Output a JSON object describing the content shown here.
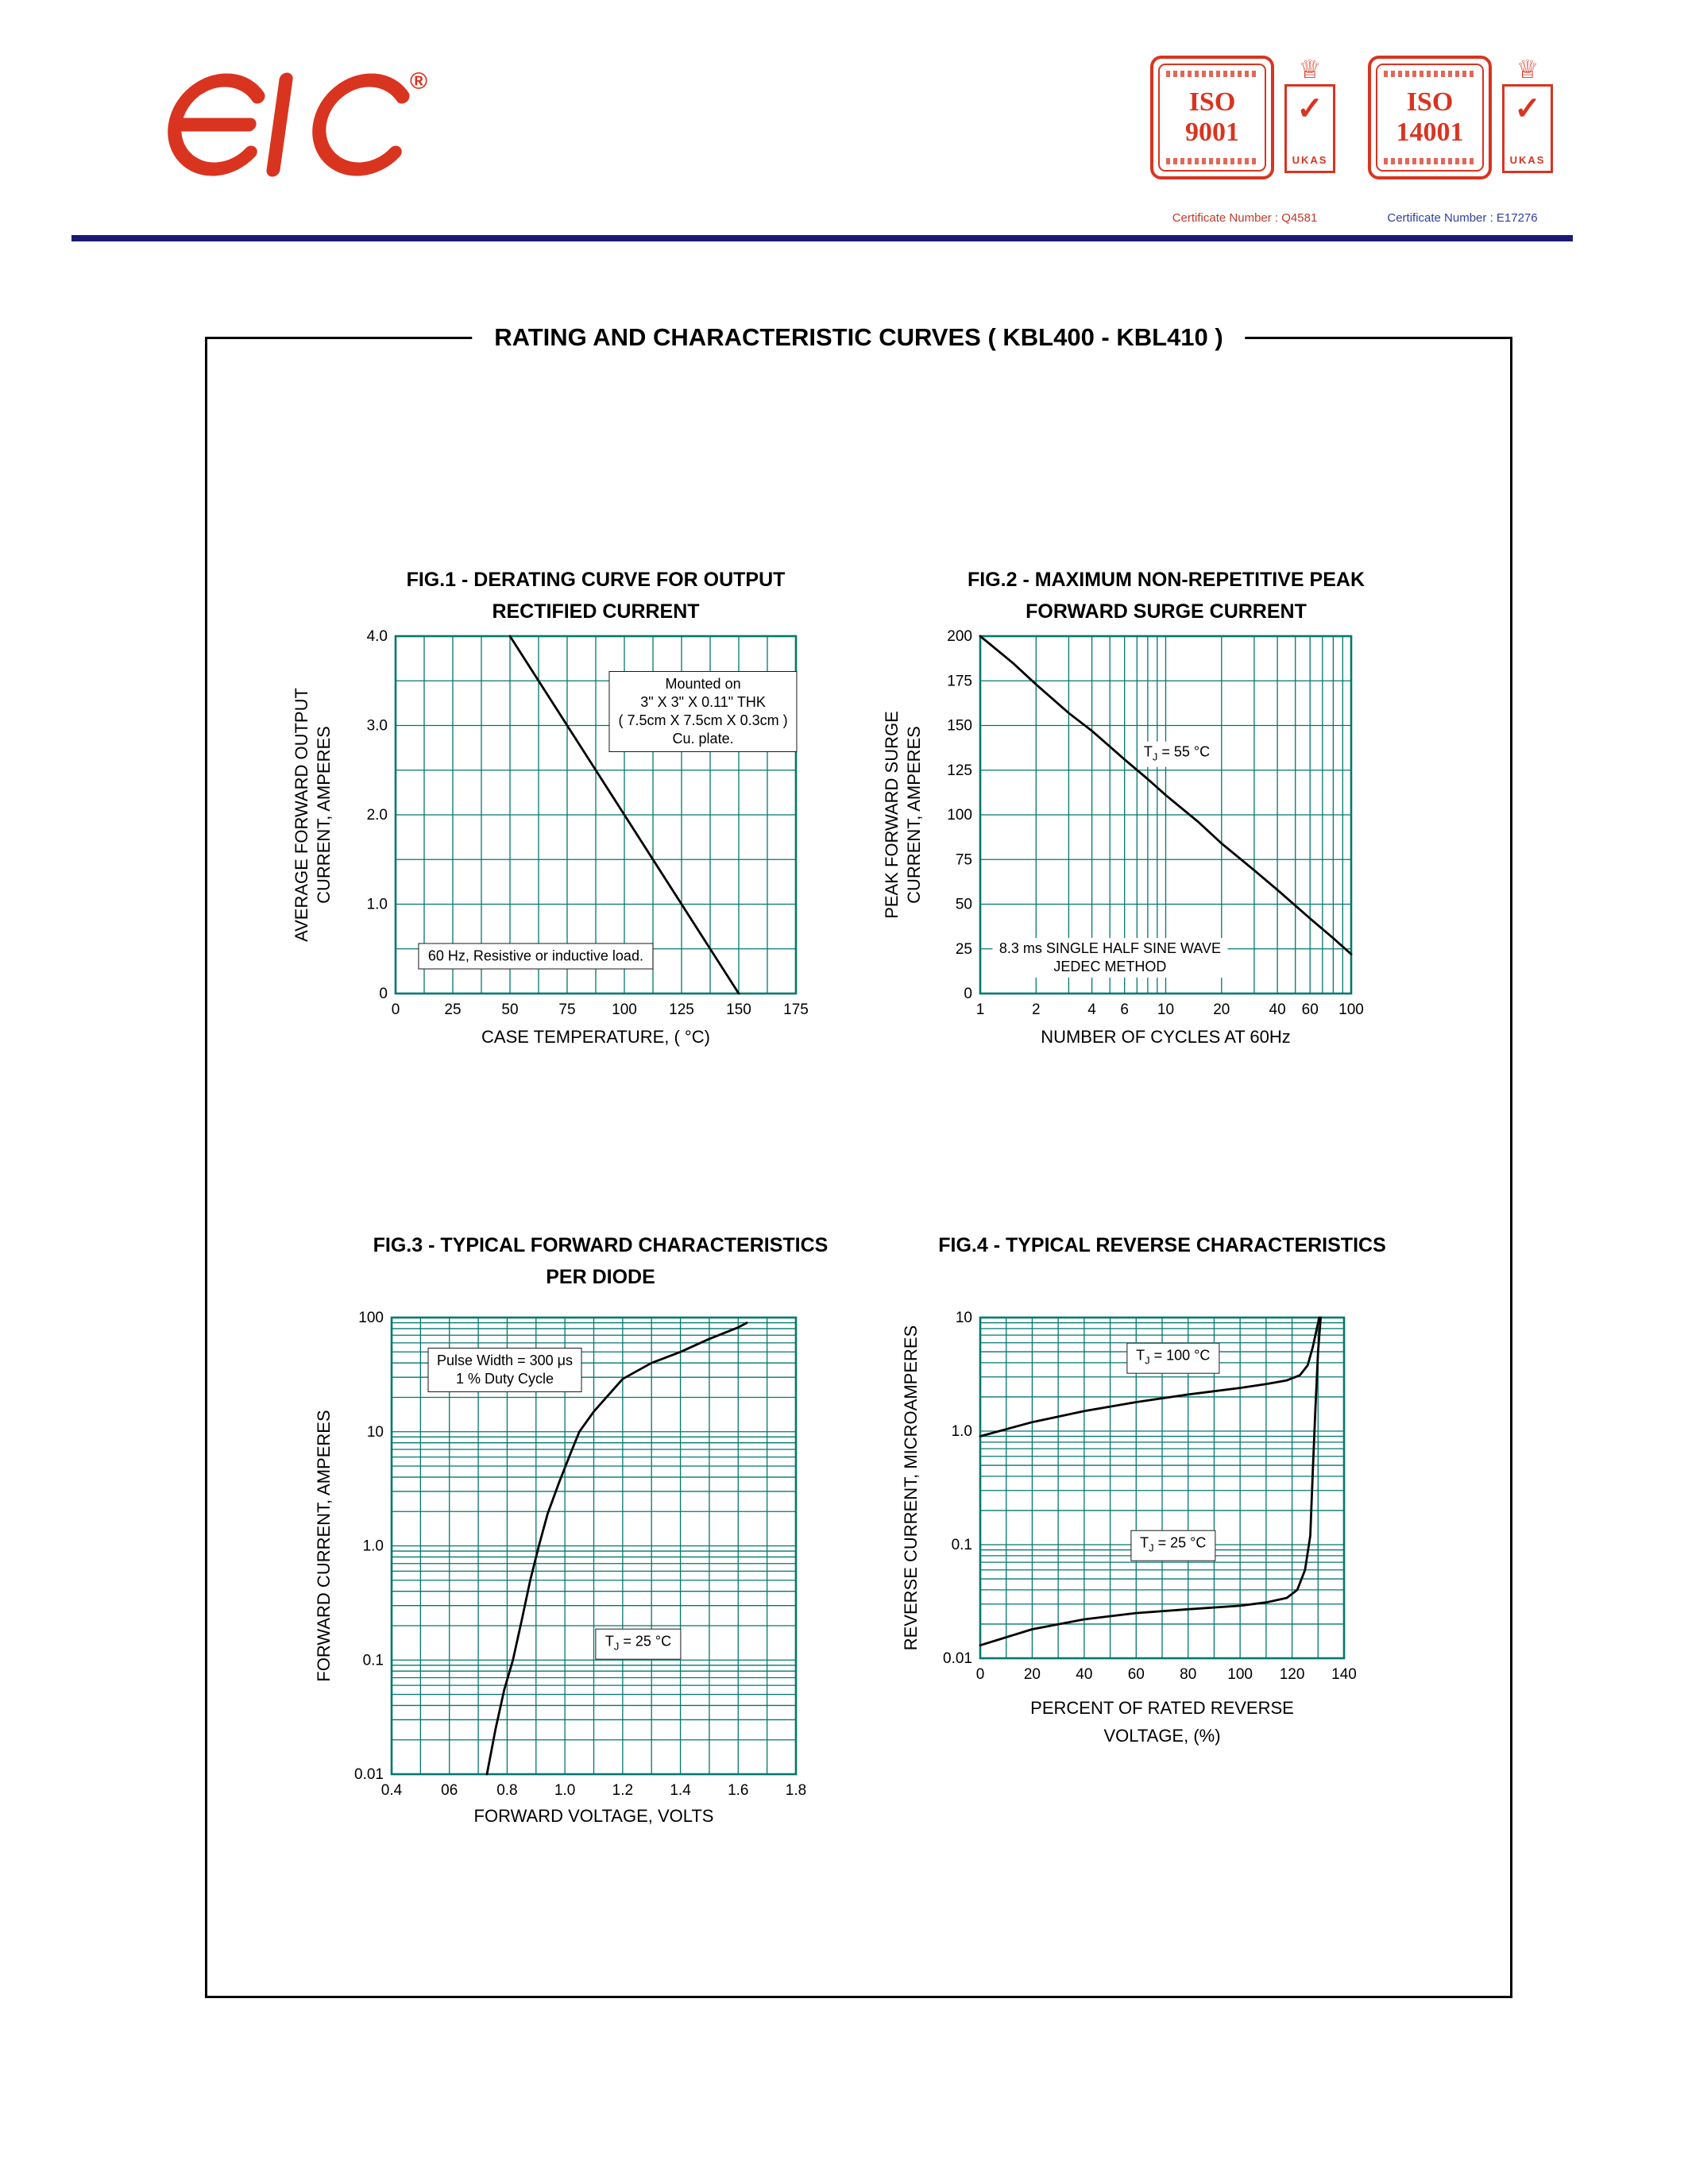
{
  "page": {
    "title": "RATING AND CHARACTERISTIC CURVES  ( KBL400 - KBL410 )"
  },
  "header": {
    "logo_text": "EIC",
    "logo_registered": "®",
    "rule_color": "#1a1a75",
    "accent_red": "#d93420",
    "badges": [
      {
        "stamp_line1": "ISO",
        "stamp_line2": "9001",
        "crown": "♕",
        "check": "✓",
        "ribbon": "UKAS",
        "certificate": "Certificate Number : Q4581",
        "cert_color": "#c03a2b"
      },
      {
        "stamp_line1": "ISO",
        "stamp_line2": "14001",
        "crown": "♕",
        "check": "✓",
        "ribbon": "UKAS",
        "certificate": "Certificate Number : E17276",
        "cert_color": "#2f3f9e"
      }
    ]
  },
  "chart_data": [
    {
      "id": "fig1",
      "type": "line",
      "title_lines": [
        "FIG.1 - DERATING CURVE FOR OUTPUT",
        "RECTIFIED CURRENT"
      ],
      "xlabel_lines": [
        "CASE TEMPERATURE, ( °C)"
      ],
      "ylabel_lines": [
        "AVERAGE FORWARD OUTPUT",
        "CURRENT, AMPERES"
      ],
      "grid_color": "#00786e",
      "x": {
        "scale": "linear",
        "min": 0,
        "max": 175,
        "grid_step": 12.5,
        "ticks": [
          {
            "v": 0,
            "label": "0"
          },
          {
            "v": 25,
            "label": "25"
          },
          {
            "v": 50,
            "label": "50"
          },
          {
            "v": 75,
            "label": "75"
          },
          {
            "v": 100,
            "label": "100"
          },
          {
            "v": 125,
            "label": "125"
          },
          {
            "v": 150,
            "label": "150"
          },
          {
            "v": 175,
            "label": "175"
          }
        ]
      },
      "y": {
        "scale": "linear",
        "min": 0,
        "max": 4,
        "grid_step": 0.5,
        "ticks": [
          {
            "v": 0,
            "label": "0"
          },
          {
            "v": 1,
            "label": "1.0"
          },
          {
            "v": 2,
            "label": "2.0"
          },
          {
            "v": 3,
            "label": "3.0"
          },
          {
            "v": 4,
            "label": "4.0"
          }
        ]
      },
      "series": [
        {
          "name": "derating-curve",
          "points": [
            [
              50,
              4
            ],
            [
              150,
              0
            ]
          ]
        }
      ],
      "annotations": [
        {
          "boxed": true,
          "fx": 0.768,
          "fy": 0.21,
          "lines": [
            [
              {
                "t": "Mounted on"
              }
            ],
            [
              {
                "t": "3\" X 3\" X 0.11\" THK"
              }
            ],
            [
              {
                "t": "( 7.5cm X 7.5cm X 0.3cm )"
              }
            ],
            [
              {
                "t": "Cu. plate."
              }
            ]
          ]
        },
        {
          "boxed": true,
          "fx": 0.35,
          "fy": 0.895,
          "lines": [
            [
              {
                "t": "60 Hz, Resistive or inductive load."
              }
            ]
          ]
        }
      ]
    },
    {
      "id": "fig2",
      "type": "line",
      "title_lines": [
        "FIG.2 - MAXIMUM NON-REPETITIVE PEAK",
        "FORWARD SURGE CURRENT"
      ],
      "xlabel_lines": [
        "NUMBER OF CYCLES AT 60Hz"
      ],
      "ylabel_lines": [
        "PEAK FORWARD SURGE",
        "CURRENT, AMPERES"
      ],
      "grid_color": "#00786e",
      "x": {
        "scale": "log",
        "min": 1,
        "max": 100,
        "ticks": [
          {
            "v": 1,
            "label": "1"
          },
          {
            "v": 2,
            "label": "2"
          },
          {
            "v": 4,
            "label": "4"
          },
          {
            "v": 6,
            "label": "6"
          },
          {
            "v": 10,
            "label": "10"
          },
          {
            "v": 20,
            "label": "20"
          },
          {
            "v": 40,
            "label": "40"
          },
          {
            "v": 60,
            "label": "60"
          },
          {
            "v": 100,
            "label": "100"
          }
        ]
      },
      "y": {
        "scale": "linear",
        "min": 0,
        "max": 200,
        "grid_step": 25,
        "ticks": [
          {
            "v": 0,
            "label": "0"
          },
          {
            "v": 25,
            "label": "25"
          },
          {
            "v": 50,
            "label": "50"
          },
          {
            "v": 75,
            "label": "75"
          },
          {
            "v": 100,
            "label": "100"
          },
          {
            "v": 125,
            "label": "125"
          },
          {
            "v": 150,
            "label": "150"
          },
          {
            "v": 175,
            "label": "175"
          },
          {
            "v": 200,
            "label": "200"
          }
        ]
      },
      "series": [
        {
          "name": "surge-current",
          "points": [
            [
              1,
              200
            ],
            [
              1.5,
              185
            ],
            [
              2,
              173
            ],
            [
              3,
              157
            ],
            [
              4,
              147
            ],
            [
              6,
              131
            ],
            [
              8,
              120
            ],
            [
              10,
              111
            ],
            [
              15,
              96
            ],
            [
              20,
              84
            ],
            [
              30,
              69
            ],
            [
              40,
              58
            ],
            [
              60,
              42
            ],
            [
              80,
              31
            ],
            [
              100,
              22
            ]
          ]
        }
      ],
      "annotations": [
        {
          "boxed": false,
          "fx": 0.53,
          "fy": 0.33,
          "lines": [
            [
              {
                "t": "T"
              },
              {
                "t": "J",
                "sub": true
              },
              {
                "t": " = 55 °C"
              }
            ]
          ]
        },
        {
          "boxed": false,
          "fx": 0.35,
          "fy": 0.9,
          "lines": [
            [
              {
                "t": "8.3 ms SINGLE HALF SINE WAVE"
              }
            ],
            [
              {
                "t": "JEDEC METHOD"
              }
            ]
          ]
        }
      ]
    },
    {
      "id": "fig3",
      "type": "line",
      "title_lines": [
        "FIG.3 - TYPICAL FORWARD CHARACTERISTICS",
        "PER DIODE"
      ],
      "xlabel_lines": [
        "FORWARD VOLTAGE, VOLTS"
      ],
      "ylabel_lines": [
        "FORWARD CURRENT, AMPERES"
      ],
      "grid_color": "#00786e",
      "x": {
        "scale": "linear",
        "min": 0.4,
        "max": 1.8,
        "grid_step": 0.1,
        "ticks": [
          {
            "v": 0.4,
            "label": "0.4"
          },
          {
            "v": 0.6,
            "label": "06"
          },
          {
            "v": 0.8,
            "label": "0.8"
          },
          {
            "v": 1,
            "label": "1.0"
          },
          {
            "v": 1.2,
            "label": "1.2"
          },
          {
            "v": 1.4,
            "label": "1.4"
          },
          {
            "v": 1.6,
            "label": "1.6"
          },
          {
            "v": 1.8,
            "label": "1.8"
          }
        ]
      },
      "y": {
        "scale": "log",
        "min": 0.01,
        "max": 100,
        "ticks": [
          {
            "v": 0.01,
            "label": "0.01"
          },
          {
            "v": 0.1,
            "label": "0.1"
          },
          {
            "v": 1,
            "label": "1.0"
          },
          {
            "v": 10,
            "label": "10"
          },
          {
            "v": 100,
            "label": "100"
          }
        ]
      },
      "series": [
        {
          "name": "forward-characteristic",
          "points": [
            [
              0.73,
              0.01
            ],
            [
              0.76,
              0.025
            ],
            [
              0.79,
              0.055
            ],
            [
              0.82,
              0.1
            ],
            [
              0.85,
              0.22
            ],
            [
              0.88,
              0.5
            ],
            [
              0.91,
              1
            ],
            [
              0.94,
              1.9
            ],
            [
              0.98,
              3.6
            ],
            [
              1.02,
              6.5
            ],
            [
              1.05,
              10
            ],
            [
              1.1,
              15
            ],
            [
              1.2,
              29
            ],
            [
              1.3,
              40
            ],
            [
              1.4,
              50
            ],
            [
              1.5,
              65
            ],
            [
              1.6,
              82
            ],
            [
              1.63,
              90
            ]
          ]
        }
      ],
      "annotations": [
        {
          "boxed": true,
          "fx": 0.28,
          "fy": 0.115,
          "lines": [
            [
              {
                "t": "Pulse Width = 300 μs"
              }
            ],
            [
              {
                "t": "1 % Duty Cycle"
              }
            ]
          ]
        },
        {
          "boxed": true,
          "fx": 0.61,
          "fy": 0.715,
          "lines": [
            [
              {
                "t": "T"
              },
              {
                "t": "J",
                "sub": true
              },
              {
                "t": " = 25 °C"
              }
            ]
          ]
        }
      ]
    },
    {
      "id": "fig4",
      "type": "line",
      "title_lines": [
        "FIG.4 - TYPICAL REVERSE CHARACTERISTICS"
      ],
      "xlabel_lines": [
        "PERCENT OF RATED REVERSE",
        "VOLTAGE, (%)"
      ],
      "ylabel_lines": [
        "REVERSE CURRENT, MICROAMPERES"
      ],
      "grid_color": "#00786e",
      "x": {
        "scale": "linear",
        "min": 0,
        "max": 140,
        "grid_step": 10,
        "ticks": [
          {
            "v": 0,
            "label": "0"
          },
          {
            "v": 20,
            "label": "20"
          },
          {
            "v": 40,
            "label": "40"
          },
          {
            "v": 60,
            "label": "60"
          },
          {
            "v": 80,
            "label": "80"
          },
          {
            "v": 100,
            "label": "100"
          },
          {
            "v": 120,
            "label": "120"
          },
          {
            "v": 140,
            "label": "140"
          }
        ]
      },
      "y": {
        "scale": "log",
        "min": 0.01,
        "max": 10,
        "ticks": [
          {
            "v": 0.01,
            "label": "0.01"
          },
          {
            "v": 0.1,
            "label": "0.1"
          },
          {
            "v": 1,
            "label": "1.0"
          },
          {
            "v": 10,
            "label": "10"
          }
        ]
      },
      "series": [
        {
          "name": "tj-100c",
          "points": [
            [
              0,
              0.9
            ],
            [
              20,
              1.2
            ],
            [
              40,
              1.5
            ],
            [
              60,
              1.8
            ],
            [
              80,
              2.1
            ],
            [
              100,
              2.4
            ],
            [
              110,
              2.6
            ],
            [
              118,
              2.8
            ],
            [
              123,
              3.1
            ],
            [
              126,
              3.8
            ],
            [
              128,
              5.5
            ],
            [
              129.5,
              8
            ],
            [
              130.5,
              10
            ]
          ]
        },
        {
          "name": "tj-25c",
          "points": [
            [
              0,
              0.013
            ],
            [
              20,
              0.018
            ],
            [
              40,
              0.022
            ],
            [
              60,
              0.025
            ],
            [
              80,
              0.027
            ],
            [
              100,
              0.029
            ],
            [
              110,
              0.031
            ],
            [
              118,
              0.034
            ],
            [
              122,
              0.04
            ],
            [
              125,
              0.06
            ],
            [
              127,
              0.12
            ],
            [
              128,
              0.45
            ],
            [
              129,
              1.6
            ],
            [
              130,
              5
            ],
            [
              131,
              10
            ]
          ]
        }
      ],
      "annotations": [
        {
          "boxed": true,
          "fx": 0.53,
          "fy": 0.12,
          "lines": [
            [
              {
                "t": "T"
              },
              {
                "t": "J",
                "sub": true
              },
              {
                "t": " = 100 °C"
              }
            ]
          ]
        },
        {
          "boxed": true,
          "fx": 0.53,
          "fy": 0.67,
          "lines": [
            [
              {
                "t": "T"
              },
              {
                "t": "J",
                "sub": true
              },
              {
                "t": " = 25 °C"
              }
            ]
          ]
        }
      ]
    }
  ]
}
